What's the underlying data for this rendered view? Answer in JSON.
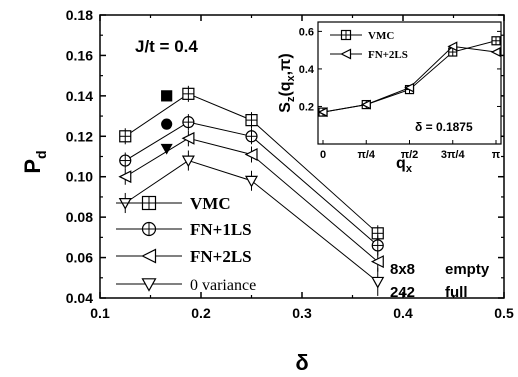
{
  "chart_data": [
    {
      "type": "line",
      "xlabel": "δ",
      "ylabel": "P",
      "ylabel_sub": "d",
      "xlim": [
        0.1,
        0.5
      ],
      "ylim": [
        0.04,
        0.18
      ],
      "xticks": [
        "0.1",
        "0.2",
        "0.3",
        "0.4",
        "0.5"
      ],
      "yticks": [
        "0.04",
        "0.06",
        "0.08",
        "0.10",
        "0.12",
        "0.14",
        "0.16",
        "0.18"
      ],
      "annotation": "J/t = 0.4",
      "size_label": "8x8",
      "size_label_2": "242",
      "fill_label_1": "empty",
      "fill_label_2": "full",
      "series": [
        {
          "name": "VMC",
          "marker": "square-plus",
          "x": [
            0.125,
            0.1875,
            0.25,
            0.375
          ],
          "y": [
            0.12,
            0.141,
            0.128,
            0.072
          ],
          "err": [
            0.001,
            0.001,
            0.001,
            0.001
          ]
        },
        {
          "name": "FN+1LS",
          "marker": "circle-plus",
          "x": [
            0.125,
            0.1875,
            0.25,
            0.375
          ],
          "y": [
            0.108,
            0.127,
            0.12,
            0.066
          ],
          "err": [
            0.001,
            0.001,
            0.001,
            0.002
          ]
        },
        {
          "name": "FN+2LS",
          "marker": "triangle-left",
          "x": [
            0.125,
            0.1875,
            0.25,
            0.375
          ],
          "y": [
            0.1,
            0.119,
            0.111,
            0.058
          ],
          "err": [
            0.001,
            0.001,
            0.001,
            0.002
          ]
        },
        {
          "name": "0 variance",
          "marker": "triangle-down",
          "x": [
            0.125,
            0.1875,
            0.25,
            0.375
          ],
          "y": [
            0.087,
            0.108,
            0.098,
            0.048
          ],
          "err": [
            0.002,
            0.002,
            0.002,
            0.004
          ]
        }
      ],
      "filled_points": [
        {
          "marker": "square",
          "x": 0.166,
          "y": 0.14
        },
        {
          "marker": "circle",
          "x": 0.166,
          "y": 0.126
        },
        {
          "marker": "triangle-down",
          "x": 0.166,
          "y": 0.114
        }
      ]
    },
    {
      "type": "line",
      "ylabel": "S",
      "ylabel_sub": "z",
      "ylabel_args": "(q",
      "ylabel_args_sub": "x",
      "ylabel_args_tail": ",π)",
      "xlabel": "q",
      "xlabel_sub": "x",
      "xlim": [
        0,
        4
      ],
      "ylim": [
        0.0,
        0.65
      ],
      "xticks": [
        "0",
        "π/4",
        "π/2",
        "3π/4",
        "π"
      ],
      "yticks": [
        "0.2",
        "0.4",
        "0.6"
      ],
      "annotation": "δ = 0.1875",
      "series": [
        {
          "name": "VMC",
          "marker": "square-plus",
          "x": [
            0,
            1,
            2,
            3,
            4
          ],
          "y": [
            0.17,
            0.21,
            0.29,
            0.49,
            0.55
          ]
        },
        {
          "name": "FN+2LS",
          "marker": "triangle-left",
          "x": [
            0,
            1,
            2,
            3,
            4
          ],
          "y": [
            0.17,
            0.21,
            0.3,
            0.52,
            0.49
          ]
        }
      ]
    }
  ]
}
